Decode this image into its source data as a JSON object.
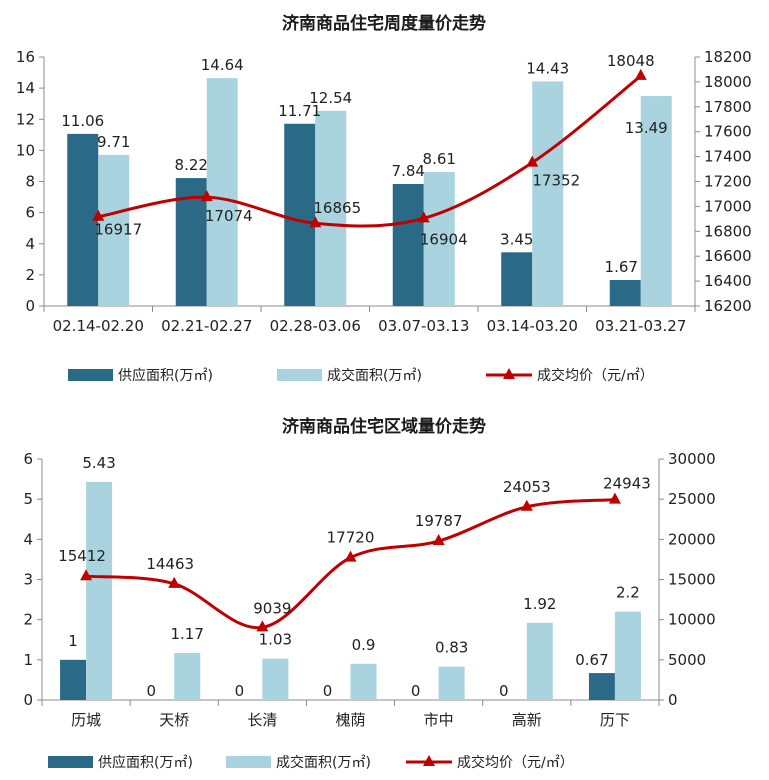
{
  "colors": {
    "supply": "#2b6a87",
    "deal": "#a9d3df",
    "price": "#c00000"
  },
  "chart_data": [
    {
      "type": "bar",
      "title": "济南商品住宅周度量价走势",
      "categories": [
        "02.14-02.20",
        "02.21-02.27",
        "02.28-03.06",
        "03.07-03.13",
        "03.14-03.20",
        "03.21-03.27"
      ],
      "series": [
        {
          "name": "供应面积(万㎡)",
          "type": "bar",
          "axis": "left",
          "values": [
            11.06,
            8.22,
            11.71,
            7.84,
            3.45,
            1.67
          ],
          "labels": [
            "11.06",
            "8.22",
            "11.71",
            "7.84",
            "3.45",
            "1.67"
          ]
        },
        {
          "name": "成交面积(万㎡)",
          "type": "bar",
          "axis": "left",
          "values": [
            9.71,
            14.64,
            12.54,
            8.61,
            14.43,
            13.49
          ],
          "labels": [
            "9.71",
            "14.64",
            "12.54",
            "8.61",
            "14.43",
            "13.49"
          ]
        },
        {
          "name": "成交均价（元/㎡）",
          "type": "line",
          "axis": "right",
          "values": [
            16917,
            17074,
            16865,
            16904,
            17352,
            18048
          ],
          "labels": [
            "16917",
            "17074",
            "16865",
            "16904",
            "17352",
            "18048"
          ]
        }
      ],
      "ylim_left": [
        0,
        16
      ],
      "yticks_left": [
        "0",
        "2",
        "4",
        "6",
        "8",
        "10",
        "12",
        "14",
        "16"
      ],
      "ylim_right": [
        16200,
        18200
      ],
      "yticks_right": [
        "16200",
        "16400",
        "16600",
        "16800",
        "17000",
        "17200",
        "17400",
        "17600",
        "17800",
        "18000",
        "18200"
      ],
      "legend": [
        "供应面积(万㎡)",
        "成交面积(万㎡)",
        "成交均价（元/㎡）"
      ],
      "legend_position": "bottom"
    },
    {
      "type": "bar",
      "title": "济南商品住宅区域量价走势",
      "categories": [
        "历城",
        "天桥",
        "长清",
        "槐荫",
        "市中",
        "高新",
        "历下"
      ],
      "series": [
        {
          "name": "供应面积(万㎡)",
          "type": "bar",
          "axis": "left",
          "values": [
            1,
            0,
            0,
            0,
            0,
            0,
            0.67
          ],
          "labels": [
            "1",
            "0",
            "0",
            "0",
            "0",
            "0",
            "0.67"
          ]
        },
        {
          "name": "成交面积(万㎡)",
          "type": "bar",
          "axis": "left",
          "values": [
            5.43,
            1.17,
            1.03,
            0.9,
            0.83,
            1.92,
            2.2
          ],
          "labels": [
            "5.43",
            "1.17",
            "1.03",
            "0.9",
            "0.83",
            "1.92",
            "2.2"
          ]
        },
        {
          "name": "成交均价（元/㎡）",
          "type": "line",
          "axis": "right",
          "values": [
            15412,
            14463,
            9039,
            17720,
            19787,
            24053,
            24943
          ],
          "labels": [
            "15412",
            "14463",
            "9039",
            "17720",
            "19787",
            "24053",
            "24943"
          ]
        }
      ],
      "ylim_left": [
        0,
        6
      ],
      "yticks_left": [
        "0",
        "1",
        "2",
        "3",
        "4",
        "5",
        "6"
      ],
      "ylim_right": [
        0,
        30000
      ],
      "yticks_right": [
        "0",
        "5000",
        "10000",
        "15000",
        "20000",
        "25000",
        "30000"
      ],
      "legend": [
        "供应面积(万㎡)",
        "成交面积(万㎡)",
        "成交均价（元/㎡）"
      ],
      "legend_position": "bottom"
    }
  ]
}
